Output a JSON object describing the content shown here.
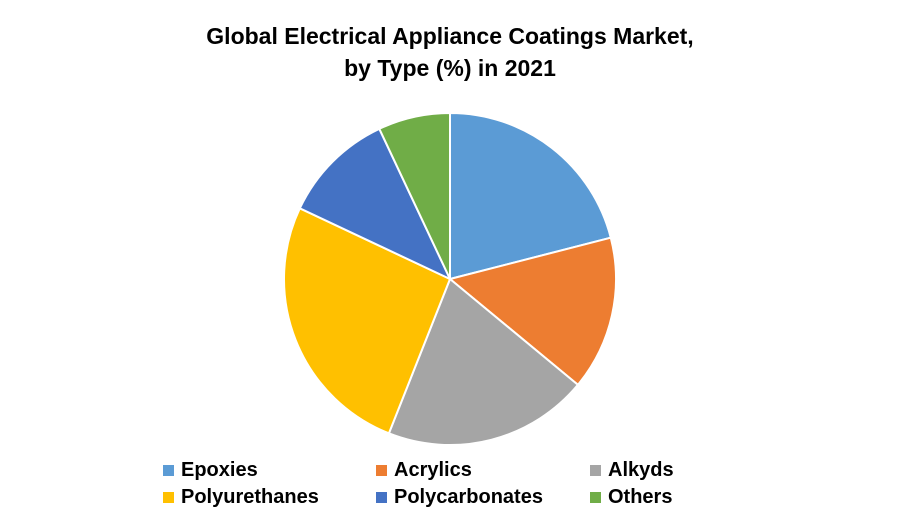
{
  "chart_data": {
    "type": "pie",
    "title": "Global Electrical Appliance Coatings Market, by Type (%) in 2021",
    "title_lines": [
      "Global Electrical Appliance Coatings Market,",
      "by Type (%) in 2021"
    ],
    "categories": [
      "Epoxies",
      "Acrylics",
      "Alkyds",
      "Polyurethanes",
      "Polycarbonates",
      "Others"
    ],
    "values": [
      21,
      15,
      20,
      26,
      11,
      7
    ],
    "colors": [
      "#5B9BD5",
      "#ED7D31",
      "#A5A5A5",
      "#FFC000",
      "#4472C4",
      "#70AD47"
    ],
    "start_angle": "12 o'clock",
    "direction": "clockwise",
    "legend_position": "bottom"
  }
}
